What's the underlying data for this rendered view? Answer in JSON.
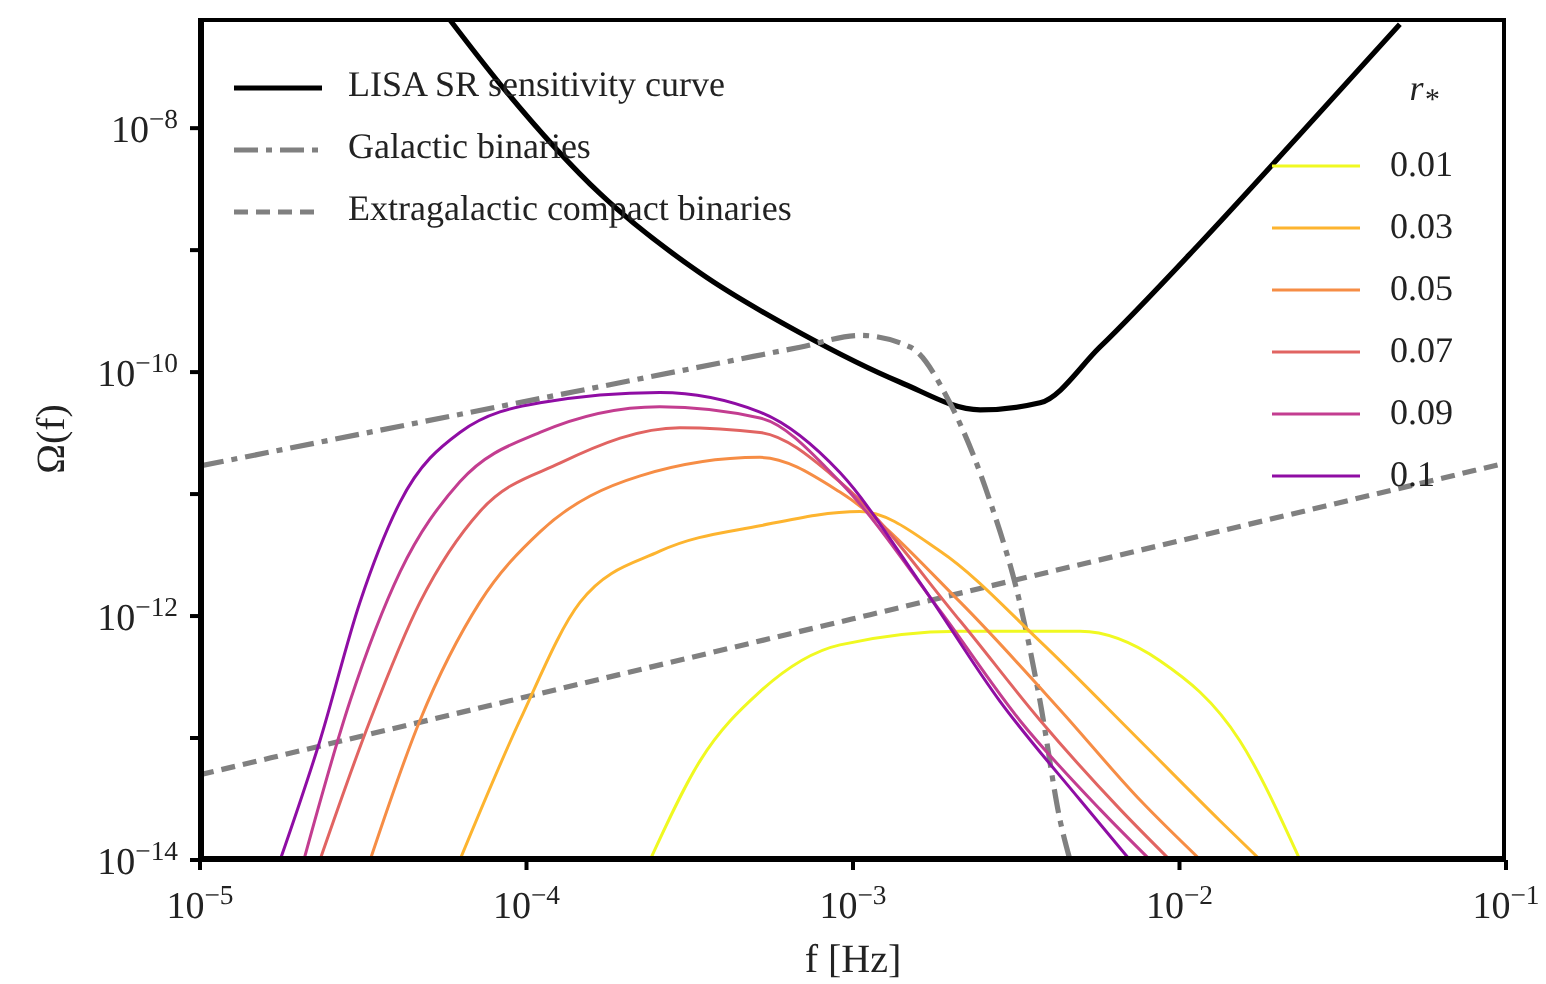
{
  "chart_data": {
    "type": "line",
    "xlabel": "f [Hz]",
    "ylabel": "Ω(f)",
    "log": "xy",
    "legend": "top",
    "legend_title": "r$_{*}$",
    "xlim": [
      1e-05,
      0.1
    ],
    "xticks": [
      {
        "value": 1e-05,
        "label": "10$^{−5}$"
      },
      {
        "value": 0.0001,
        "label": "10$^{−4}$"
      },
      {
        "value": 0.001,
        "label": "10$^{−3}$"
      },
      {
        "value": 0.01,
        "label": "10$^{−2}$"
      },
      {
        "value": 0.1,
        "label": "10$^{−1}$"
      }
    ],
    "ylim": [
      1e-14,
      8e-08
    ],
    "yticks": [
      {
        "value": 1e-14,
        "label": "10$^{−14}$"
      },
      {
        "value": 1e-13,
        "label": null
      },
      {
        "value": 1e-12,
        "label": "10$^{−12}$"
      },
      {
        "value": 1e-11,
        "label": null
      },
      {
        "value": 1e-10,
        "label": "10$^{−10}$"
      },
      {
        "value": 1e-09,
        "label": null
      },
      {
        "value": 1e-08,
        "label": "10$^{−8}$"
      }
    ],
    "series": [
      {
        "name": "LISA SR sensitivity curve",
        "color": "#000000",
        "line_style": "solid",
        "x": [
          5.83e-05,
          8.3e-05,
          0.000168,
          0.00034,
          0.000688,
          0.00139,
          0.00245,
          0.00374,
          0.0057,
          0.0116,
          0.0234,
          0.0473
        ],
        "values": [
          7.7e-08,
          2.3e-08,
          2.9e-09,
          6.5e-10,
          2.1e-10,
          8.3e-11,
          4.9e-11,
          5.6e-11,
          1.6e-10,
          1.15e-09,
          8.9e-09,
          7.1e-08
        ]
      },
      {
        "name": "Galactic binaries",
        "color": "#808080",
        "line_style": "dashdot",
        "x": [
          1e-05,
          4.1e-05,
          0.000168,
          0.000688,
          0.00105,
          0.0015,
          0.00198,
          0.00263,
          0.00324,
          0.00374,
          0.00431,
          0.00462
        ],
        "values": [
          1.7e-11,
          3.6e-11,
          7.6e-11,
          1.6e-10,
          2e-10,
          1.6e-10,
          5.6e-11,
          8.7e-12,
          1.3e-12,
          2e-13,
          2.1e-14,
          1e-14
        ]
      },
      {
        "name": "Extragalactic compact binaries",
        "color": "#808080",
        "line_style": "dashed",
        "x": [
          1e-05,
          0.001,
          0.1
        ],
        "values": [
          5e-14,
          9.5e-13,
          1.8e-11
        ]
      },
      {
        "name": "0.01",
        "color": "#f0f921",
        "x": [
          0.000239,
          0.00034,
          0.000519,
          0.000912,
          0.00213,
          0.00496,
          0.00871,
          0.0153,
          0.0234
        ],
        "values": [
          1e-14,
          6.5e-14,
          2.4e-13,
          5.8e-13,
          7.5e-13,
          7.5e-13,
          4.3e-13,
          9.5e-14,
          1e-14
        ]
      },
      {
        "name": "0.03",
        "color": "#fdb42f",
        "x": [
          6.25e-05,
          9.55e-05,
          0.000146,
          0.000256,
          0.000519,
          0.00105,
          0.00185,
          0.00374,
          0.00757,
          0.0133,
          0.0177
        ],
        "values": [
          1e-14,
          1.4e-13,
          1.3e-12,
          3.4e-12,
          5.5e-12,
          7.2e-12,
          3.4e-12,
          6.2e-13,
          9.5e-14,
          2.1e-14,
          1e-14
        ]
      },
      {
        "name": "0.05",
        "color": "#f68d45",
        "x": [
          3.32e-05,
          4.72e-05,
          7.2e-05,
          0.00011,
          0.000223,
          0.000519,
          0.000912,
          0.00213,
          0.00431,
          0.00757,
          0.0116
        ],
        "values": [
          1e-14,
          1.4e-13,
          1.3e-12,
          4.9e-12,
          1.41e-11,
          2e-11,
          1.04e-11,
          1.3e-12,
          1.7e-13,
          3.1e-14,
          1e-14
        ]
      },
      {
        "name": "0.07",
        "color": "#e16462",
        "x": [
          2.33e-05,
          3.32e-05,
          4.72e-05,
          7.2e-05,
          0.000127,
          0.000295,
          0.000519,
          0.000912,
          0.00213,
          0.00374,
          0.00658,
          0.00935
        ],
        "values": [
          1e-14,
          1.4e-13,
          1.3e-12,
          7.2e-12,
          1.8e-11,
          3.5e-11,
          3.2e-11,
          1.26e-11,
          9.1e-13,
          1.4e-13,
          2.6e-14,
          1e-14
        ]
      },
      {
        "name": "0.09",
        "color": "#c33d90",
        "x": [
          2.08e-05,
          2.88e-05,
          4.1e-05,
          6.25e-05,
          0.00011,
          0.000256,
          0.000519,
          0.000912,
          0.00185,
          0.00324,
          0.00571,
          0.00813
        ],
        "values": [
          1e-14,
          2e-13,
          2.3e-12,
          1.26e-11,
          3.2e-11,
          5.2e-11,
          4.2e-11,
          1.26e-11,
          1.1e-12,
          1.4e-13,
          2.6e-14,
          1e-14
        ]
      },
      {
        "name": "0.1",
        "color": "#8f0da4",
        "x": [
          1.76e-05,
          2.33e-05,
          3.09e-05,
          4.1e-05,
          6.25e-05,
          0.00011,
          0.000256,
          0.000519,
          0.000912,
          0.0016,
          0.00282,
          0.00496,
          0.00705
        ],
        "values": [
          1e-14,
          9.5e-14,
          1.3e-12,
          8.6e-12,
          3.2e-11,
          5.6e-11,
          6.8e-11,
          4.7e-11,
          1.5e-11,
          1.9e-12,
          2e-13,
          3.1e-14,
          1e-14
        ]
      }
    ]
  }
}
